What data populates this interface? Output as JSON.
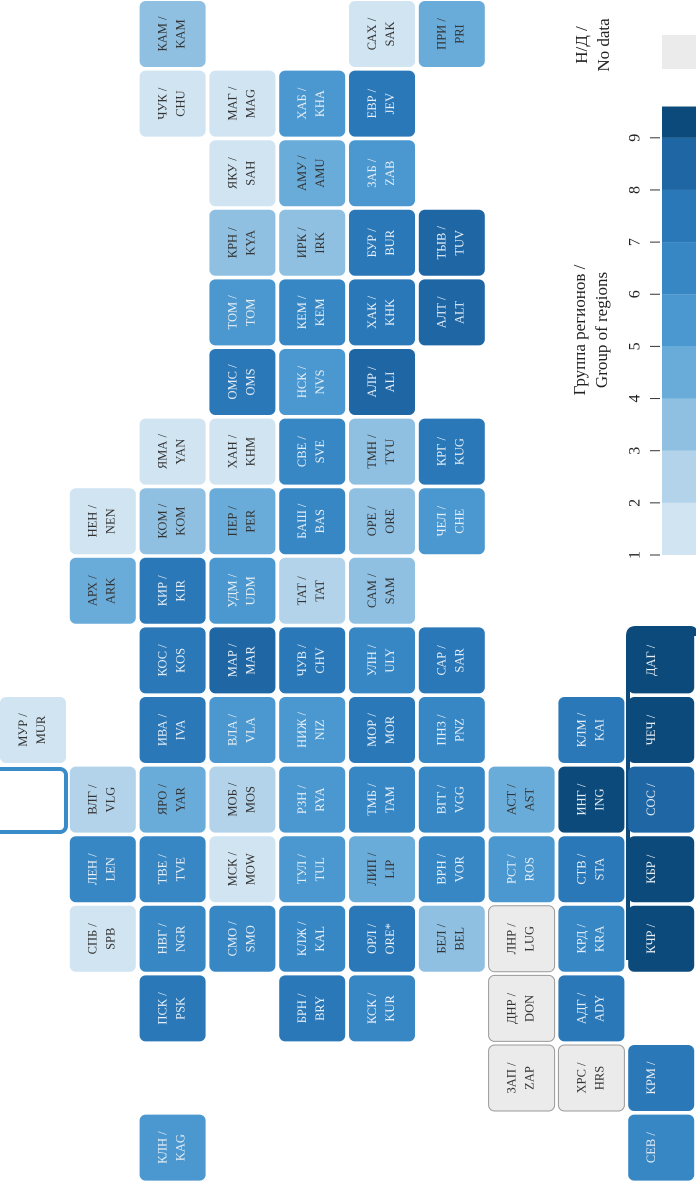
{
  "map": {
    "tiles": [
      {
        "ru": "КАМ /",
        "en": "KAM",
        "group": 3
      },
      {
        "ru": "САХ /",
        "en": "SAK",
        "group": 1
      },
      {
        "ru": "ПРИ /",
        "en": "PRI",
        "group": 4
      },
      {
        "ru": "ЧУК /",
        "en": "CHU",
        "group": 1
      },
      {
        "ru": "МАГ /",
        "en": "MAG",
        "group": 1
      },
      {
        "ru": "ХАБ /",
        "en": "KHA",
        "group": 5
      },
      {
        "ru": "ЕВР /",
        "en": "JEV",
        "group": 7
      },
      {
        "ru": "ЯКУ /",
        "en": "SAH",
        "group": 1
      },
      {
        "ru": "АМУ /",
        "en": "AMU",
        "group": 4
      },
      {
        "ru": "ЗАБ /",
        "en": "ZAB",
        "group": 5
      },
      {
        "ru": "КРН /",
        "en": "KYA",
        "group": 3
      },
      {
        "ru": "ИРК /",
        "en": "IRK",
        "group": 3
      },
      {
        "ru": "БУР /",
        "en": "BUR",
        "group": 7
      },
      {
        "ru": "ТЫВ /",
        "en": "TUV",
        "group": 8
      },
      {
        "ru": "ТОМ /",
        "en": "TOM",
        "group": 5
      },
      {
        "ru": "КЕМ /",
        "en": "KEM",
        "group": 6
      },
      {
        "ru": "ХАК /",
        "en": "KHK",
        "group": 7
      },
      {
        "ru": "АЛТ /",
        "en": "ALT",
        "group": 8
      },
      {
        "ru": "ОМС /",
        "en": "OMS",
        "group": 7
      },
      {
        "ru": "НСК /",
        "en": "NVS",
        "group": 5
      },
      {
        "ru": "АЛР /",
        "en": "ALI",
        "group": 8
      },
      {
        "ru": "ЯМА /",
        "en": "YAN",
        "group": 1
      },
      {
        "ru": "ХАН /",
        "en": "KHM",
        "group": 1
      },
      {
        "ru": "СВЕ /",
        "en": "SVE",
        "group": 6
      },
      {
        "ru": "ТМН /",
        "en": "TYU",
        "group": 3
      },
      {
        "ru": "КРГ /",
        "en": "KUG",
        "group": 7
      },
      {
        "ru": "НЕН /",
        "en": "NEN",
        "group": 1
      },
      {
        "ru": "КОМ /",
        "en": "KOM",
        "group": 3
      },
      {
        "ru": "ПЕР /",
        "en": "PER",
        "group": 4
      },
      {
        "ru": "БАШ /",
        "en": "BAS",
        "group": 6
      },
      {
        "ru": "ОРЕ /",
        "en": "ORE",
        "group": 3
      },
      {
        "ru": "ЧЕЛ /",
        "en": "CHE",
        "group": 5
      },
      {
        "ru": "АРХ /",
        "en": "ARK",
        "group": 4
      },
      {
        "ru": "КИР /",
        "en": "KIR",
        "group": 7
      },
      {
        "ru": "УДМ /",
        "en": "UDM",
        "group": 5
      },
      {
        "ru": "ТАТ /",
        "en": "TAT",
        "group": 2
      },
      {
        "ru": "САМ /",
        "en": "SAM",
        "group": 3
      },
      {
        "ru": "КОС /",
        "en": "KOS",
        "group": 7
      },
      {
        "ru": "МАР /",
        "en": "MAR",
        "group": 8
      },
      {
        "ru": "ЧУВ /",
        "en": "CHV",
        "group": 7
      },
      {
        "ru": "УЛН /",
        "en": "ULY",
        "group": 6
      },
      {
        "ru": "САР /",
        "en": "SAR",
        "group": 7
      },
      {
        "ru": "ДАГ /",
        "group": 9
      },
      {
        "ru": "МУР /",
        "en": "MUR",
        "group": 1
      },
      {
        "ru": "ИВА /",
        "en": "IVA",
        "group": 7
      },
      {
        "ru": "ВЛА /",
        "en": "VLA",
        "group": 5
      },
      {
        "ru": "НИЖ /",
        "en": "NIZ",
        "group": 5
      },
      {
        "ru": "МОР /",
        "en": "MOR",
        "group": 7
      },
      {
        "ru": "ПНЗ /",
        "en": "PNZ",
        "group": 6
      },
      {
        "ru": "КЛМ /",
        "en": "KAI",
        "group": 7
      },
      {
        "ru": "ЧЕЧ /",
        "group": 9
      },
      {
        "ru": "ВЛГ /",
        "en": "VLG",
        "group": 2
      },
      {
        "ru": "ЯРО /",
        "en": "YAR",
        "group": 4
      },
      {
        "ru": "МОБ /",
        "en": "MOS",
        "group": 2
      },
      {
        "ru": "РЗН /",
        "en": "RYA",
        "group": 5
      },
      {
        "ru": "ТМБ /",
        "en": "TAM",
        "group": 6
      },
      {
        "ru": "ВГГ /",
        "en": "VGG",
        "group": 6
      },
      {
        "ru": "АСТ /",
        "en": "AST",
        "group": 4
      },
      {
        "ru": "ИНГ /",
        "en": "ING",
        "group": 9
      },
      {
        "ru": "СОС /",
        "group": 8
      },
      {
        "ru": "ЛЕН /",
        "en": "LEN",
        "group": 6
      },
      {
        "ru": "ТВЕ /",
        "en": "TVE",
        "group": 6
      },
      {
        "ru": "МСК /",
        "en": "MOW",
        "group": 1
      },
      {
        "ru": "ТУЛ /",
        "en": "TUL",
        "group": 5
      },
      {
        "ru": "ЛИП /",
        "en": "LIP",
        "group": 4
      },
      {
        "ru": "ВРН /",
        "en": "VOR",
        "group": 6
      },
      {
        "ru": "РСТ /",
        "en": "ROS",
        "group": 5
      },
      {
        "ru": "СТВ /",
        "en": "STA",
        "group": 7
      },
      {
        "ru": "КБР /",
        "group": 9
      },
      {
        "ru": "СПБ /",
        "en": "SPB",
        "group": 1
      },
      {
        "ru": "НВГ /",
        "en": "NGR",
        "group": 6
      },
      {
        "ru": "СМО /",
        "en": "SMO",
        "group": 6
      },
      {
        "ru": "КЛЖ /",
        "en": "KAL",
        "group": 6
      },
      {
        "ru": "ОРЛ /",
        "en": "ORE*",
        "group": 7
      },
      {
        "ru": "БЕЛ /",
        "en": "BEL",
        "group": 3
      },
      {
        "ru": "ЛНР /",
        "en": "LUG",
        "group": null
      },
      {
        "ru": "КРД /",
        "en": "KRA",
        "group": 6
      },
      {
        "ru": "КЧР /",
        "group": 9
      },
      {
        "ru": "ПСК /",
        "en": "PSK",
        "group": 7
      },
      {
        "ru": "БРН /",
        "en": "BRY",
        "group": 7
      },
      {
        "ru": "КСК /",
        "en": "KUR",
        "group": 6
      },
      {
        "ru": "ДНР /",
        "en": "DON",
        "group": null
      },
      {
        "ru": "АДГ /",
        "en": "ADY",
        "group": 7
      },
      {
        "ru": "ЗАП /",
        "en": "ZAP",
        "group": null
      },
      {
        "ru": "ХРС /",
        "en": "HRS",
        "group": null
      },
      {
        "ru": "КРМ /",
        "group": 7
      },
      {
        "ru": "КЛН /",
        "en": "KAG",
        "group": 5
      },
      {
        "ru": "СЕВ /",
        "group": 6
      }
    ],
    "legend": {
      "title_ru": "Группа регионов /",
      "title_en": "Group of regions",
      "nodata_ru": "Н/Д /",
      "nodata_en": "No data",
      "nodata_color": "#ebebeb",
      "range": [
        1,
        9.6
      ],
      "ticks": [
        1,
        2,
        3,
        4,
        5,
        6,
        7,
        8,
        9
      ],
      "colors": [
        "#d0e4f2",
        "#b3d3ea",
        "#8fc0e2",
        "#6aacd9",
        "#4a98cf",
        "#3887c5",
        "#2a78b8",
        "#1f66a5",
        "#0b4a7a"
      ]
    }
  }
}
